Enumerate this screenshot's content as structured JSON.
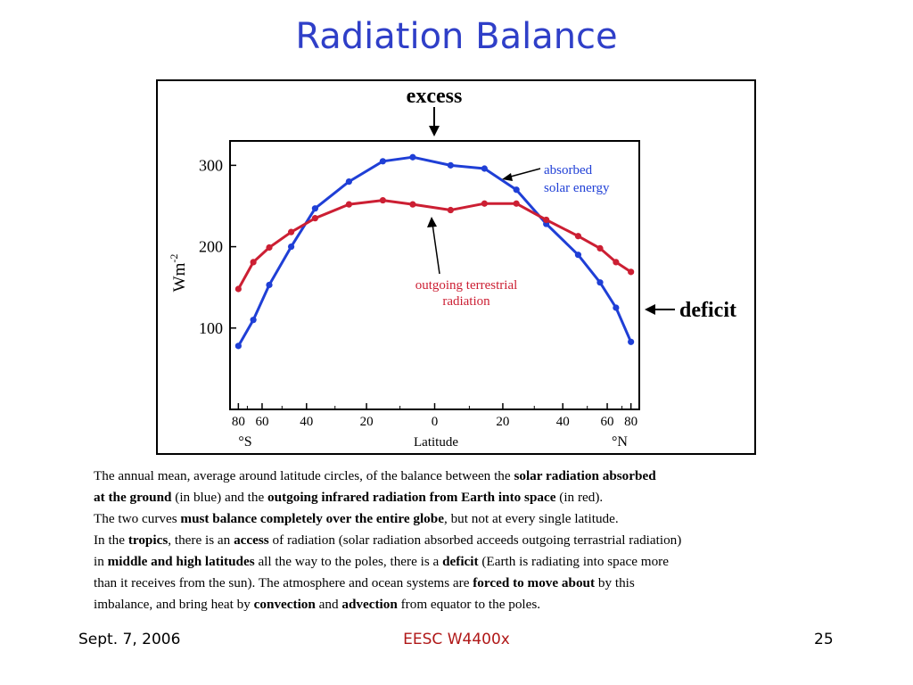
{
  "slide": {
    "title": "Radiation Balance",
    "footer_left": "Sept. 7, 2006",
    "footer_center": "EESC W4400x",
    "footer_right": "25"
  },
  "caption": {
    "lines": [
      [
        {
          "t": "The annual mean, average around latitude circles, of the balance between the ",
          "b": false
        },
        {
          "t": "solar radiation absorbed",
          "b": true
        }
      ],
      [
        {
          "t": "at the ground",
          "b": true
        },
        {
          "t": " (in blue) and the ",
          "b": false
        },
        {
          "t": "outgoing infrared radiation from Earth into space",
          "b": true
        },
        {
          "t": " (in red).",
          "b": false
        }
      ],
      [
        {
          "t": "The two curves ",
          "b": false
        },
        {
          "t": "must balance completely over the entire globe",
          "b": true
        },
        {
          "t": ", but not at every single latitude.",
          "b": false
        }
      ],
      [
        {
          "t": "In the ",
          "b": false
        },
        {
          "t": "tropics",
          "b": true
        },
        {
          "t": ", there is an ",
          "b": false
        },
        {
          "t": "access",
          "b": true
        },
        {
          "t": " of radiation (solar radiation absorbed acceeds outgoing terrastrial radiation)",
          "b": false
        }
      ],
      [
        {
          "t": "in ",
          "b": false
        },
        {
          "t": "middle and high latitudes",
          "b": true
        },
        {
          "t": " all the way to the poles, there is a ",
          "b": false
        },
        {
          "t": "deficit",
          "b": true
        },
        {
          "t": " (Earth is radiating into space more",
          "b": false
        }
      ],
      [
        {
          "t": "than it receives from the sun). The atmosphere and ocean systems are ",
          "b": false
        },
        {
          "t": "forced to move about",
          "b": true
        },
        {
          "t": " by this",
          "b": false
        }
      ],
      [
        {
          "t": "imbalance, and bring heat by ",
          "b": false
        },
        {
          "t": "convection",
          "b": true
        },
        {
          "t": " and ",
          "b": false
        },
        {
          "t": "advection",
          "b": true
        },
        {
          "t": " from equator to the poles.",
          "b": false
        }
      ]
    ]
  },
  "chart_data": {
    "type": "line",
    "xlabel": "Latitude",
    "ylabel_base": "Wm",
    "ylabel_sup": "-2",
    "xlim": [
      -1,
      1
    ],
    "ylim": [
      0,
      330
    ],
    "x_ticks": [
      {
        "v": -0.985,
        "label": "80"
      },
      {
        "v": -0.866,
        "label": "60"
      },
      {
        "v": -0.643,
        "label": "40"
      },
      {
        "v": -0.342,
        "label": "20"
      },
      {
        "v": 0,
        "label": "0"
      },
      {
        "v": 0.342,
        "label": "20"
      },
      {
        "v": 0.643,
        "label": "40"
      },
      {
        "v": 0.866,
        "label": "60"
      },
      {
        "v": 0.985,
        "label": "80"
      }
    ],
    "x_minor_ticks": [
      -0.94,
      -0.766,
      -0.5,
      -0.174,
      0.174,
      0.5,
      0.766,
      0.94
    ],
    "y_ticks": [
      {
        "v": 100,
        "label": "100"
      },
      {
        "v": 200,
        "label": "200"
      },
      {
        "v": 300,
        "label": "300"
      }
    ],
    "hemisphere_labels": {
      "south": "°S",
      "north": "°N"
    },
    "series": [
      {
        "name": "absorbed solar energy",
        "color": "#1f3fd6",
        "x": [
          -0.985,
          -0.91,
          -0.83,
          -0.72,
          -0.6,
          -0.43,
          -0.26,
          -0.11,
          0.08,
          0.25,
          0.41,
          0.56,
          0.72,
          0.83,
          0.91,
          0.985
        ],
        "y": [
          78,
          110,
          153,
          200,
          247,
          280,
          305,
          310,
          300,
          296,
          270,
          228,
          190,
          156,
          125,
          83
        ]
      },
      {
        "name": "outgoing terrestrial radiation",
        "color": "#cc1f33",
        "x": [
          -0.985,
          -0.91,
          -0.83,
          -0.72,
          -0.6,
          -0.43,
          -0.26,
          -0.11,
          0.08,
          0.25,
          0.41,
          0.56,
          0.72,
          0.83,
          0.91,
          0.985
        ],
        "y": [
          148,
          181,
          199,
          218,
          235,
          252,
          257,
          252,
          245,
          253,
          253,
          233,
          213,
          198,
          181,
          169
        ]
      }
    ],
    "annotations": {
      "excess": "excess",
      "deficit": "deficit",
      "absorbed_line1": "absorbed",
      "absorbed_line2": "solar energy",
      "outgoing_line1": "outgoing terrestrial",
      "outgoing_line2": "radiation"
    }
  }
}
